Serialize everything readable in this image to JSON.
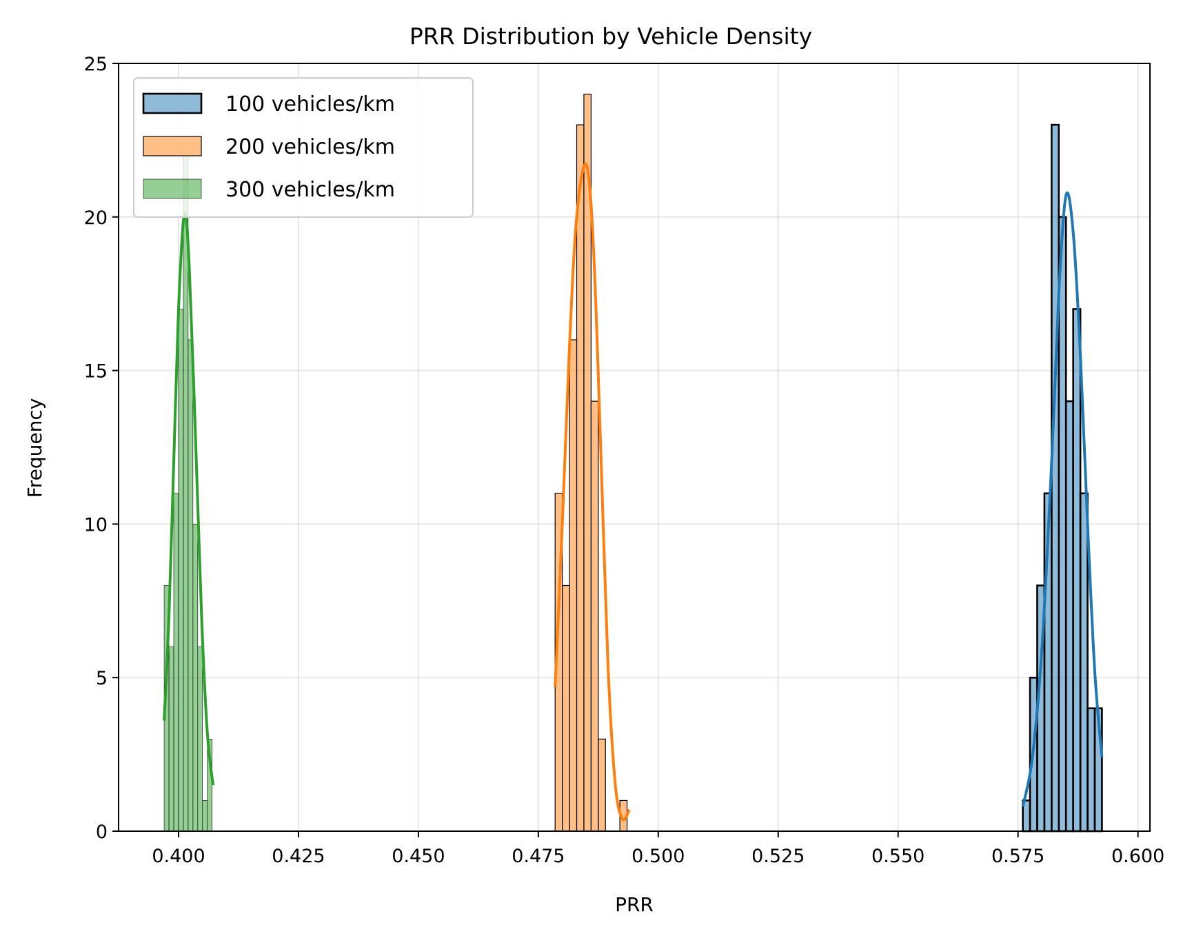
{
  "chart_data": {
    "type": "histogram",
    "title": "PRR Distribution by Vehicle Density",
    "xlabel": "PRR",
    "ylabel": "Frequency",
    "xlim": [
      0.3875,
      0.6025
    ],
    "ylim": [
      0,
      25
    ],
    "xticks": [
      "0.400",
      "0.425",
      "0.450",
      "0.475",
      "0.500",
      "0.525",
      "0.550",
      "0.575",
      "0.600"
    ],
    "xtick_values": [
      0.4,
      0.425,
      0.45,
      0.475,
      0.5,
      0.525,
      0.55,
      0.575,
      0.6
    ],
    "yticks": [
      "0",
      "5",
      "10",
      "15",
      "20",
      "25"
    ],
    "ytick_values": [
      0,
      5,
      10,
      15,
      20,
      25
    ],
    "grid": true,
    "legend_position": "upper-left",
    "series": [
      {
        "name": "100 vehicles/km",
        "color": "#1f77b4",
        "fill": "#8fbbd9",
        "bin_edges": [
          0.576,
          0.5775,
          0.579,
          0.5805,
          0.582,
          0.5835,
          0.585,
          0.5865,
          0.588,
          0.5895,
          0.591,
          0.5925
        ],
        "counts": [
          1,
          5,
          8,
          11,
          23,
          20,
          14,
          17,
          11,
          4,
          4
        ],
        "kde": [
          [
            0.576,
            0.8
          ],
          [
            0.578,
            2.4
          ],
          [
            0.58,
            6.0
          ],
          [
            0.582,
            12.0
          ],
          [
            0.5835,
            17.5
          ],
          [
            0.585,
            20.7
          ],
          [
            0.5865,
            19.5
          ],
          [
            0.588,
            15.5
          ],
          [
            0.5895,
            10.0
          ],
          [
            0.591,
            5.2
          ],
          [
            0.5925,
            2.4
          ]
        ]
      },
      {
        "name": "200 vehicles/km",
        "color": "#ff7f0e",
        "fill": "#ffbf86",
        "bin_edges": [
          0.4785,
          0.48,
          0.4815,
          0.483,
          0.4845,
          0.486,
          0.4875,
          0.489,
          0.4905,
          0.492,
          0.4935,
          0.495
        ],
        "counts": [
          11,
          8,
          16,
          23,
          24,
          14,
          3,
          0,
          0,
          1,
          0
        ],
        "kde": [
          [
            0.4785,
            4.7
          ],
          [
            0.48,
            10.0
          ],
          [
            0.4815,
            15.8
          ],
          [
            0.483,
            20.0
          ],
          [
            0.485,
            21.7
          ],
          [
            0.4865,
            19.0
          ],
          [
            0.488,
            12.5
          ],
          [
            0.4895,
            5.5
          ],
          [
            0.491,
            1.6
          ],
          [
            0.4925,
            0.4
          ],
          [
            0.494,
            0.7
          ]
        ]
      },
      {
        "name": "300 vehicles/km",
        "color": "#2ca02c",
        "fill": "#96d196",
        "bin_edges": [
          0.397,
          0.398,
          0.399,
          0.4,
          0.401,
          0.402,
          0.403,
          0.404,
          0.405,
          0.406,
          0.407
        ],
        "counts": [
          8,
          6,
          11,
          17,
          22,
          16,
          10,
          6,
          1,
          3
        ],
        "kde": [
          [
            0.397,
            3.6
          ],
          [
            0.398,
            7.0
          ],
          [
            0.399,
            12.0
          ],
          [
            0.4,
            17.0
          ],
          [
            0.4012,
            20.1
          ],
          [
            0.4022,
            18.5
          ],
          [
            0.4035,
            13.0
          ],
          [
            0.4048,
            7.0
          ],
          [
            0.406,
            3.2
          ],
          [
            0.4072,
            1.5
          ]
        ]
      }
    ]
  }
}
